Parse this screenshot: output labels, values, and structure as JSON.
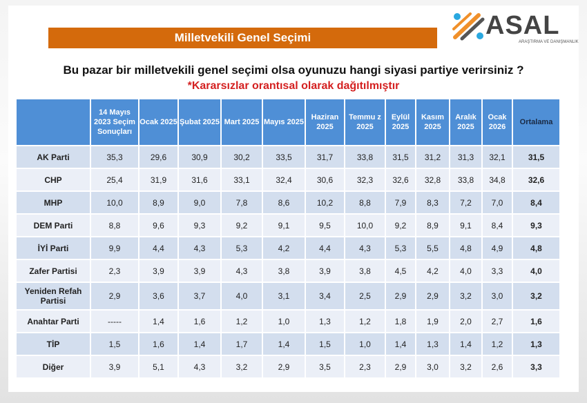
{
  "banner_title": "Milletvekili Genel Seçimi",
  "logo": {
    "name": "ASAL",
    "subtitle": "ARAŞTIRMA VE DANIŞMANLIK",
    "colors": [
      "#f0902a",
      "#2aa8e0",
      "#555555"
    ]
  },
  "question": "Bu pazar bir milletvekili genel seçimi olsa oyunuzu hangi siyasi partiye verirsiniz ?",
  "note": "*Kararsızlar orantısal olarak dağıtılmıştır",
  "colors": {
    "banner": "#d46a0c",
    "header": "#4f8fd6",
    "row_odd": "#d3deee",
    "row_even": "#ebeff7",
    "note": "#d42020"
  },
  "chart_data": {
    "type": "table",
    "columns": [
      "",
      "14 Mayıs 2023 Seçim Sonuçları",
      "Ocak 2025",
      "Şubat 2025",
      "Mart 2025",
      "Mayıs 2025",
      "Haziran 2025",
      "Temmu z 2025",
      "Eylül 2025",
      "Kasım 2025",
      "Aralık 2025",
      "Ocak 2026",
      "Ortalama"
    ],
    "rows": [
      [
        "AK Parti",
        "35,3",
        "29,6",
        "30,9",
        "30,2",
        "33,5",
        "31,7",
        "33,8",
        "31,5",
        "31,2",
        "31,3",
        "32,1",
        "31,5"
      ],
      [
        "CHP",
        "25,4",
        "31,9",
        "31,6",
        "33,1",
        "32,4",
        "30,6",
        "32,3",
        "32,6",
        "32,8",
        "33,8",
        "34,8",
        "32,6"
      ],
      [
        "MHP",
        "10,0",
        "8,9",
        "9,0",
        "7,8",
        "8,6",
        "10,2",
        "8,8",
        "7,9",
        "8,3",
        "7,2",
        "7,0",
        "8,4"
      ],
      [
        "DEM Parti",
        "8,8",
        "9,6",
        "9,3",
        "9,2",
        "9,1",
        "9,5",
        "10,0",
        "9,2",
        "8,9",
        "9,1",
        "8,4",
        "9,3"
      ],
      [
        "İYİ Parti",
        "9,9",
        "4,4",
        "4,3",
        "5,3",
        "4,2",
        "4,4",
        "4,3",
        "5,3",
        "5,5",
        "4,8",
        "4,9",
        "4,8"
      ],
      [
        "Zafer Partisi",
        "2,3",
        "3,9",
        "3,9",
        "4,3",
        "3,8",
        "3,9",
        "3,8",
        "4,5",
        "4,2",
        "4,0",
        "3,3",
        "4,0"
      ],
      [
        "Yeniden Refah Partisi",
        "2,9",
        "3,6",
        "3,7",
        "4,0",
        "3,1",
        "3,4",
        "2,5",
        "2,9",
        "2,9",
        "3,2",
        "3,0",
        "3,2"
      ],
      [
        "Anahtar Parti",
        "-----",
        "1,4",
        "1,6",
        "1,2",
        "1,0",
        "1,3",
        "1,2",
        "1,8",
        "1,9",
        "2,0",
        "2,7",
        "1,6"
      ],
      [
        "TİP",
        "1,5",
        "1,6",
        "1,4",
        "1,7",
        "1,4",
        "1,5",
        "1,0",
        "1,4",
        "1,3",
        "1,4",
        "1,2",
        "1,3"
      ],
      [
        "Diğer",
        "3,9",
        "5,1",
        "4,3",
        "3,2",
        "2,9",
        "3,5",
        "2,3",
        "2,9",
        "3,0",
        "3,2",
        "2,6",
        "3,3"
      ]
    ]
  }
}
